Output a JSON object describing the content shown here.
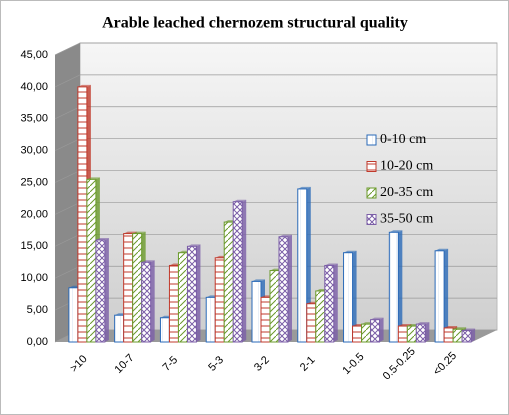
{
  "chart_data": {
    "type": "bar",
    "title": "Arable leached chernozem structural quality",
    "categories": [
      ">10",
      "10-7",
      "7-5",
      "5-3",
      "3-2",
      "2-1",
      "1-0.5",
      "0.5-0.25",
      "<0.25"
    ],
    "series": [
      {
        "name": "0-10 cm",
        "color": "#2a6ab8",
        "values": [
          8.5,
          4.2,
          3.8,
          7,
          9.5,
          24,
          14,
          17.2,
          14.3
        ]
      },
      {
        "name": "10-20 cm",
        "color": "#c0392b",
        "values": [
          40,
          17,
          12,
          13.2,
          7,
          6,
          2.5,
          2.5,
          2.2
        ]
      },
      {
        "name": "20-35 cm",
        "color": "#6a9a2a",
        "values": [
          25.5,
          17,
          14,
          18.8,
          11.2,
          8,
          2.8,
          2.5,
          2
        ]
      },
      {
        "name": "35-50 cm",
        "color": "#7b5ea7",
        "values": [
          16,
          12.5,
          15,
          22,
          16.5,
          12,
          3.5,
          2.8,
          1.8
        ]
      }
    ],
    "ylim": [
      0,
      45
    ],
    "yticks": [
      {
        "value": 0,
        "label": "0,00"
      },
      {
        "value": 5,
        "label": "5,00"
      },
      {
        "value": 10,
        "label": "10,00"
      },
      {
        "value": 15,
        "label": "15,00"
      },
      {
        "value": 20,
        "label": "20,00"
      },
      {
        "value": 25,
        "label": "25,00"
      },
      {
        "value": 30,
        "label": "30,00"
      },
      {
        "value": 35,
        "label": "35,00"
      },
      {
        "value": 40,
        "label": "40,00"
      },
      {
        "value": 45,
        "label": "45,00"
      }
    ],
    "grid": true
  }
}
